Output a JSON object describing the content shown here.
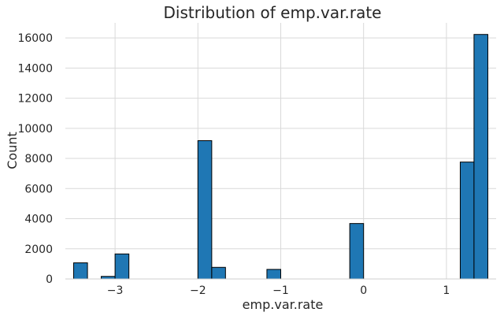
{
  "chart_data": {
    "type": "bar",
    "title": "Distribution of emp.var.rate",
    "xlabel": "emp.var.rate",
    "ylabel": "Count",
    "xlim": [
      -3.6,
      1.6
    ],
    "ylim": [
      0,
      17000
    ],
    "grid": true,
    "bars": [
      {
        "x_start": -3.5,
        "x_end": -3.333,
        "value": 1070
      },
      {
        "x_start": -3.167,
        "x_end": -3.0,
        "value": 170
      },
      {
        "x_start": -3.0,
        "x_end": -2.833,
        "value": 1660
      },
      {
        "x_start": -2.0,
        "x_end": -1.833,
        "value": 9180
      },
      {
        "x_start": -1.833,
        "x_end": -1.667,
        "value": 770
      },
      {
        "x_start": -1.167,
        "x_end": -1.0,
        "value": 635
      },
      {
        "x_start": -0.167,
        "x_end": 0.0,
        "value": 3680
      },
      {
        "x_start": 1.167,
        "x_end": 1.333,
        "value": 7760
      },
      {
        "x_start": 1.333,
        "x_end": 1.5,
        "value": 16230
      }
    ],
    "x_ticks": [
      {
        "value": -3,
        "label": "−3"
      },
      {
        "value": -2,
        "label": "−2"
      },
      {
        "value": -1,
        "label": "−1"
      },
      {
        "value": 0,
        "label": "0"
      },
      {
        "value": 1,
        "label": "1"
      }
    ],
    "y_ticks": [
      {
        "value": 0,
        "label": "0"
      },
      {
        "value": 2000,
        "label": "2000"
      },
      {
        "value": 4000,
        "label": "4000"
      },
      {
        "value": 6000,
        "label": "6000"
      },
      {
        "value": 8000,
        "label": "8000"
      },
      {
        "value": 10000,
        "label": "10000"
      },
      {
        "value": 12000,
        "label": "12000"
      },
      {
        "value": 14000,
        "label": "14000"
      },
      {
        "value": 16000,
        "label": "16000"
      }
    ],
    "colors": {
      "bar_fill": "#1f77b4",
      "bar_edge": "#000000",
      "grid": "#d9d9d9",
      "text": "#262626"
    }
  }
}
